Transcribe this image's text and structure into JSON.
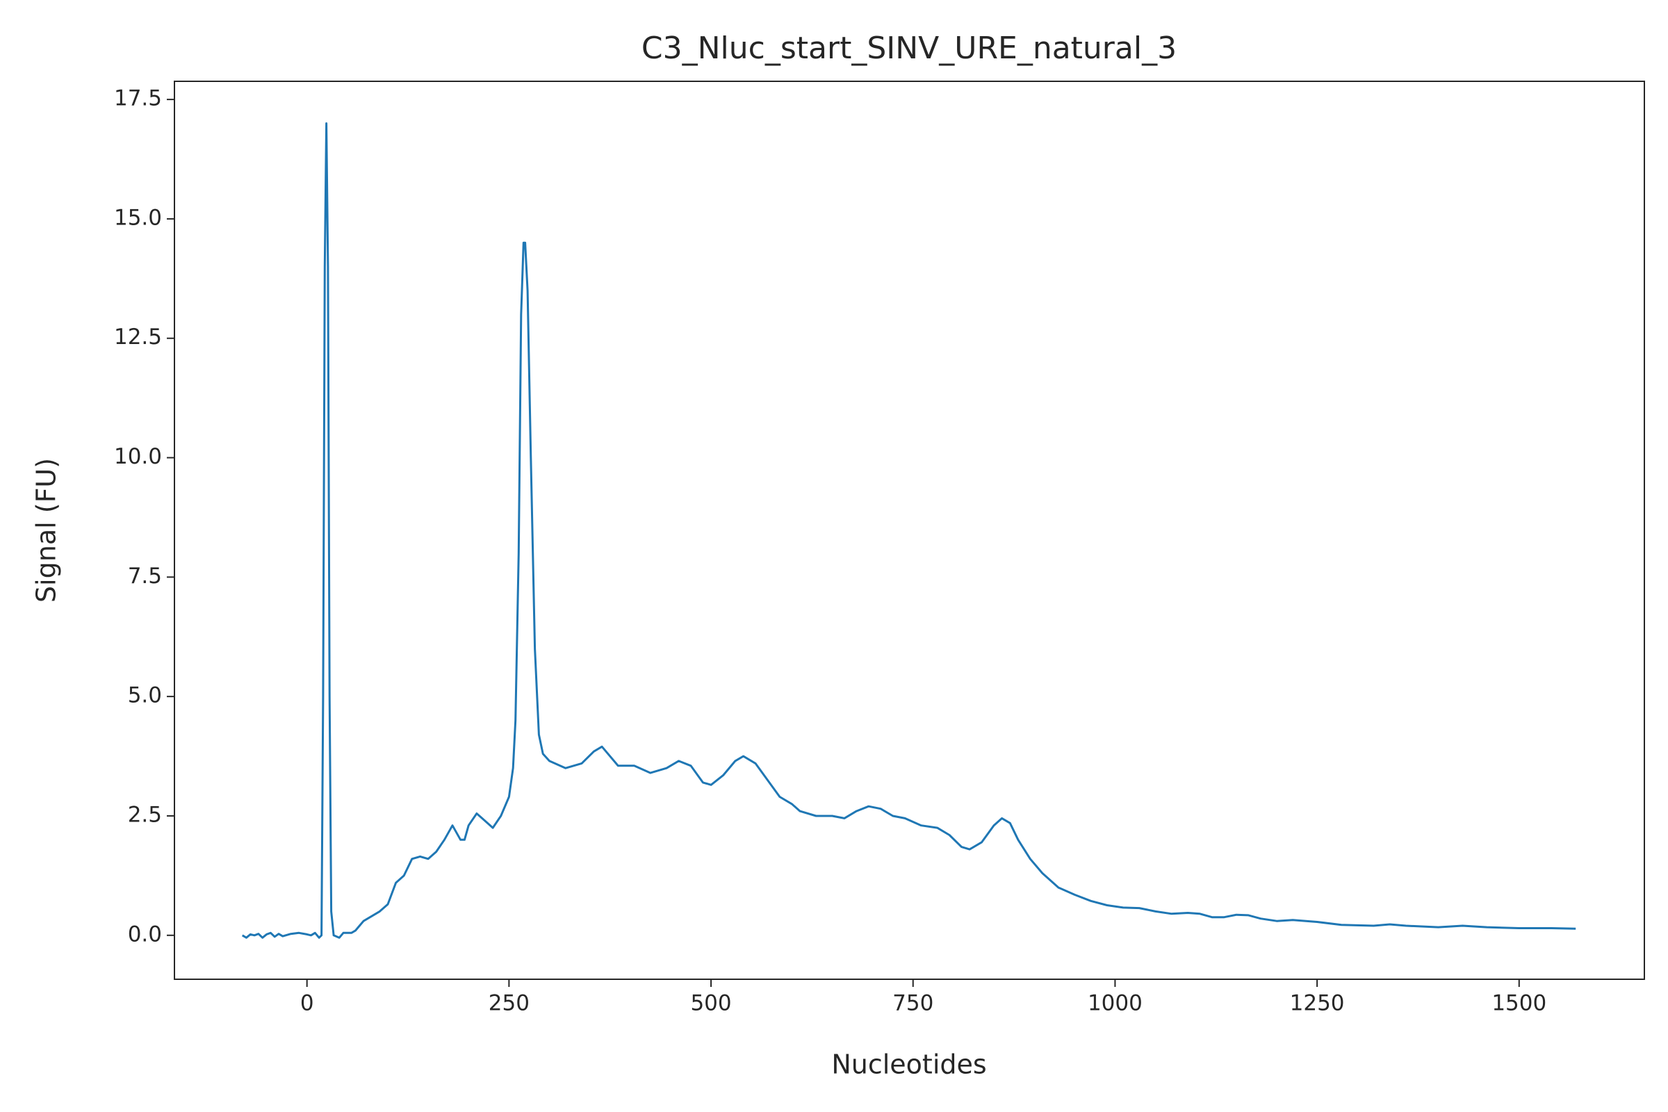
{
  "chart_data": {
    "type": "line",
    "title": "C3_Nluc_start_SINV_URE_natural_3",
    "xlabel": "Nucleotides",
    "ylabel": "Signal (FU)",
    "color": "#1f77b4",
    "x": [
      -80,
      -75,
      -70,
      -65,
      -60,
      -55,
      -50,
      -45,
      -40,
      -35,
      -30,
      -20,
      -10,
      0,
      5,
      10,
      15,
      18,
      20,
      22,
      24,
      26,
      28,
      30,
      33,
      40,
      45,
      55,
      60,
      65,
      70,
      80,
      90,
      100,
      110,
      120,
      130,
      140,
      150,
      160,
      170,
      180,
      190,
      195,
      200,
      210,
      220,
      230,
      240,
      250,
      255,
      258,
      262,
      265,
      268,
      270,
      273,
      277,
      282,
      287,
      292,
      300,
      320,
      340,
      355,
      365,
      385,
      405,
      425,
      445,
      460,
      475,
      490,
      500,
      515,
      530,
      540,
      555,
      570,
      585,
      600,
      610,
      630,
      650,
      665,
      680,
      695,
      710,
      725,
      740,
      760,
      780,
      795,
      810,
      820,
      835,
      850,
      860,
      870,
      880,
      895,
      910,
      930,
      950,
      970,
      990,
      1010,
      1030,
      1050,
      1070,
      1090,
      1105,
      1120,
      1135,
      1150,
      1165,
      1180,
      1200,
      1220,
      1250,
      1280,
      1320,
      1340,
      1360,
      1400,
      1430,
      1460,
      1500,
      1540,
      1570
    ],
    "values": [
      0,
      -0.05,
      0.02,
      0,
      0.03,
      -0.05,
      0.02,
      0.05,
      -0.03,
      0.03,
      -0.02,
      0.03,
      0.05,
      0.02,
      0,
      0.05,
      -0.05,
      0,
      5,
      14,
      17,
      14,
      5,
      0.5,
      0,
      -0.05,
      0.05,
      0.05,
      0.1,
      0.2,
      0.3,
      0.4,
      0.5,
      0.65,
      1.1,
      1.25,
      1.6,
      1.65,
      1.6,
      1.75,
      2.0,
      2.3,
      2.0,
      2.0,
      2.3,
      2.55,
      2.4,
      2.25,
      2.5,
      2.9,
      3.5,
      4.5,
      8,
      13,
      14.5,
      14.5,
      13.5,
      10,
      6,
      4.2,
      3.8,
      3.65,
      3.5,
      3.6,
      3.85,
      3.95,
      3.55,
      3.55,
      3.4,
      3.5,
      3.65,
      3.55,
      3.2,
      3.15,
      3.35,
      3.65,
      3.75,
      3.6,
      3.25,
      2.9,
      2.75,
      2.6,
      2.5,
      2.5,
      2.45,
      2.6,
      2.7,
      2.65,
      2.5,
      2.45,
      2.3,
      2.25,
      2.1,
      1.85,
      1.8,
      1.95,
      2.3,
      2.45,
      2.35,
      2.0,
      1.6,
      1.3,
      1.0,
      0.85,
      0.72,
      0.63,
      0.58,
      0.57,
      0.5,
      0.45,
      0.47,
      0.45,
      0.38,
      0.38,
      0.43,
      0.42,
      0.35,
      0.3,
      0.32,
      0.28,
      0.22,
      0.2,
      0.23,
      0.2,
      0.17,
      0.2,
      0.17,
      0.15,
      0.15,
      0.14
    ],
    "xlim": [
      -164,
      1655
    ],
    "ylim": [
      -0.92,
      17.88
    ],
    "xticks": [
      0,
      250,
      500,
      750,
      1000,
      1250,
      1500
    ],
    "yticks": [
      {
        "value": 0,
        "label": "0.0"
      },
      2.5,
      {
        "value": 5,
        "label": "5.0"
      },
      7.5,
      {
        "value": 10,
        "label": "10.0"
      },
      12.5,
      {
        "value": 15,
        "label": "15.0"
      },
      17.5
    ]
  }
}
